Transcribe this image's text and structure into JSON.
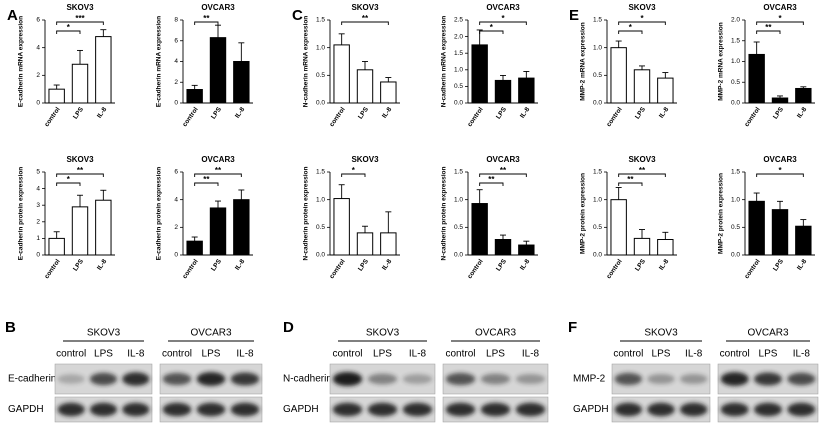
{
  "chart_panels": [
    "A",
    "C",
    "E"
  ],
  "chart_data": [
    {
      "type": "bar",
      "title": "SKOV3",
      "ylabel": "E-cadherin mRNA expression",
      "categories": [
        "control",
        "LPS",
        "IL-8"
      ],
      "values": [
        1.0,
        2.8,
        4.8
      ],
      "errors": [
        0.3,
        1.0,
        0.5
      ],
      "color": "#ffffff",
      "ylim": [
        0,
        6
      ],
      "yticks": [
        0,
        2,
        4,
        6
      ],
      "brackets": [
        {
          "from": 0,
          "to": 1,
          "label": "*"
        },
        {
          "from": 0,
          "to": 2,
          "label": "***"
        }
      ]
    },
    {
      "type": "bar",
      "title": "OVCAR3",
      "ylabel": "E-cadherin mRNA expression",
      "categories": [
        "control",
        "LPS",
        "IL-8"
      ],
      "values": [
        1.3,
        6.3,
        4.0
      ],
      "errors": [
        0.4,
        1.2,
        1.8
      ],
      "color": "#000000",
      "ylim": [
        0,
        8
      ],
      "yticks": [
        0,
        2,
        4,
        6,
        8
      ],
      "brackets": [
        {
          "from": 0,
          "to": 1,
          "label": "**"
        }
      ]
    },
    {
      "type": "bar",
      "title": "SKOV3",
      "ylabel": "E-cadherin protein expression",
      "categories": [
        "control",
        "LPS",
        "IL-8"
      ],
      "values": [
        1.0,
        2.9,
        3.3
      ],
      "errors": [
        0.4,
        0.7,
        0.6
      ],
      "color": "#ffffff",
      "ylim": [
        0,
        5
      ],
      "yticks": [
        0,
        1,
        2,
        3,
        4,
        5
      ],
      "brackets": [
        {
          "from": 0,
          "to": 1,
          "label": "*"
        },
        {
          "from": 0,
          "to": 2,
          "label": "**"
        }
      ]
    },
    {
      "type": "bar",
      "title": "OVCAR3",
      "ylabel": "E-cadherin protein expression",
      "categories": [
        "control",
        "LPS",
        "IL-8"
      ],
      "values": [
        1.0,
        3.4,
        4.0
      ],
      "errors": [
        0.3,
        0.5,
        0.7
      ],
      "color": "#000000",
      "ylim": [
        0,
        6
      ],
      "yticks": [
        0,
        2,
        4,
        6
      ],
      "brackets": [
        {
          "from": 0,
          "to": 1,
          "label": "**"
        },
        {
          "from": 0,
          "to": 2,
          "label": "**"
        }
      ]
    },
    {
      "type": "bar",
      "title": "SKOV3",
      "ylabel": "N-cadherin mRNA expression",
      "categories": [
        "control",
        "LPS",
        "IL-8"
      ],
      "values": [
        1.05,
        0.6,
        0.38
      ],
      "errors": [
        0.2,
        0.15,
        0.08
      ],
      "color": "#ffffff",
      "ylim": [
        0,
        1.5
      ],
      "yticks": [
        {
          "value": 0,
          "label": "0.0"
        },
        0.5,
        {
          "value": 1,
          "label": "1.0"
        },
        1.5
      ],
      "brackets": [
        {
          "from": 0,
          "to": 2,
          "label": "**"
        }
      ]
    },
    {
      "type": "bar",
      "title": "OVCAR3",
      "ylabel": "N-cadherin mRNA expression",
      "categories": [
        "control",
        "LPS",
        "IL-8"
      ],
      "values": [
        1.75,
        0.68,
        0.75
      ],
      "errors": [
        0.45,
        0.15,
        0.2
      ],
      "color": "#000000",
      "ylim": [
        0,
        2.5
      ],
      "yticks": [
        {
          "value": 0,
          "label": "0.0"
        },
        0.5,
        {
          "value": 1,
          "label": "1.0"
        },
        1.5,
        {
          "value": 2,
          "label": "2.0"
        },
        2.5
      ],
      "brackets": [
        {
          "from": 0,
          "to": 1,
          "label": "*"
        },
        {
          "from": 0,
          "to": 2,
          "label": "*"
        }
      ]
    },
    {
      "type": "bar",
      "title": "SKOV3",
      "ylabel": "N-cadherin protein expression",
      "categories": [
        "control",
        "LPS",
        "IL-8"
      ],
      "values": [
        1.02,
        0.4,
        0.4
      ],
      "errors": [
        0.25,
        0.12,
        0.38
      ],
      "color": "#ffffff",
      "ylim": [
        0,
        1.5
      ],
      "yticks": [
        {
          "value": 0,
          "label": "0.0"
        },
        0.5,
        {
          "value": 1,
          "label": "1.0"
        },
        1.5
      ],
      "brackets": [
        {
          "from": 0,
          "to": 1,
          "label": "*"
        }
      ]
    },
    {
      "type": "bar",
      "title": "OVCAR3",
      "ylabel": "N-cadherin protein expression",
      "categories": [
        "control",
        "LPS",
        "IL-8"
      ],
      "values": [
        0.93,
        0.28,
        0.18
      ],
      "errors": [
        0.25,
        0.08,
        0.07
      ],
      "color": "#000000",
      "ylim": [
        0,
        1.5
      ],
      "yticks": [
        {
          "value": 0,
          "label": "0.0"
        },
        0.5,
        {
          "value": 1,
          "label": "1.0"
        },
        1.5
      ],
      "brackets": [
        {
          "from": 0,
          "to": 1,
          "label": "**"
        },
        {
          "from": 0,
          "to": 2,
          "label": "**"
        }
      ]
    },
    {
      "type": "bar",
      "title": "SKOV3",
      "ylabel": "MMP-2 mRNA expression",
      "categories": [
        "control",
        "LPS",
        "IL-8"
      ],
      "values": [
        1.0,
        0.6,
        0.45
      ],
      "errors": [
        0.12,
        0.07,
        0.1
      ],
      "color": "#ffffff",
      "ylim": [
        0,
        1.5
      ],
      "yticks": [
        {
          "value": 0,
          "label": "0.0"
        },
        0.5,
        {
          "value": 1,
          "label": "1.0"
        },
        1.5
      ],
      "brackets": [
        {
          "from": 0,
          "to": 1,
          "label": "*"
        },
        {
          "from": 0,
          "to": 2,
          "label": "*"
        }
      ]
    },
    {
      "type": "bar",
      "title": "OVCAR3",
      "ylabel": "MMP-2 mRNA expression",
      "categories": [
        "control",
        "LPS",
        "IL-8"
      ],
      "values": [
        1.17,
        0.12,
        0.35
      ],
      "errors": [
        0.3,
        0.05,
        0.04
      ],
      "color": "#000000",
      "ylim": [
        0,
        2
      ],
      "yticks": [
        {
          "value": 0,
          "label": "0.0"
        },
        0.5,
        {
          "value": 1,
          "label": "1.0"
        },
        1.5,
        {
          "value": 2,
          "label": "2.0"
        }
      ],
      "brackets": [
        {
          "from": 0,
          "to": 1,
          "label": "**"
        },
        {
          "from": 0,
          "to": 2,
          "label": "*"
        }
      ]
    },
    {
      "type": "bar",
      "title": "SKOV3",
      "ylabel": "MMP-2 protein expression",
      "categories": [
        "control",
        "LPS",
        "IL-8"
      ],
      "values": [
        1.0,
        0.3,
        0.28
      ],
      "errors": [
        0.22,
        0.16,
        0.13
      ],
      "color": "#ffffff",
      "ylim": [
        0,
        1.5
      ],
      "yticks": [
        {
          "value": 0,
          "label": "0.0"
        },
        0.5,
        {
          "value": 1,
          "label": "1.0"
        },
        1.5
      ],
      "brackets": [
        {
          "from": 0,
          "to": 1,
          "label": "**"
        },
        {
          "from": 0,
          "to": 2,
          "label": "**"
        }
      ]
    },
    {
      "type": "bar",
      "title": "OVCAR3",
      "ylabel": "MMP-2 protein expression",
      "categories": [
        "control",
        "LPS",
        "IL-8"
      ],
      "values": [
        0.97,
        0.82,
        0.52
      ],
      "errors": [
        0.15,
        0.15,
        0.12
      ],
      "color": "#000000",
      "ylim": [
        0,
        1.5
      ],
      "yticks": [
        {
          "value": 0,
          "label": "0.0"
        },
        0.5,
        {
          "value": 1,
          "label": "1.0"
        },
        1.5
      ],
      "brackets": [
        {
          "from": 0,
          "to": 2,
          "label": "*"
        }
      ]
    }
  ],
  "blots": [
    {
      "letter": "B",
      "groups": [
        "SKOV3",
        "OVCAR3"
      ],
      "lanes": [
        "control",
        "LPS",
        "IL-8",
        "control",
        "LPS",
        "IL-8"
      ],
      "rows": [
        "E-cadherin",
        "GAPDH"
      ]
    },
    {
      "letter": "D",
      "groups": [
        "SKOV3",
        "OVCAR3"
      ],
      "lanes": [
        "control",
        "LPS",
        "IL-8",
        "control",
        "LPS",
        "IL-8"
      ],
      "rows": [
        "N-cadherin",
        "GAPDH"
      ]
    },
    {
      "letter": "F",
      "groups": [
        "SKOV3",
        "OVCAR3"
      ],
      "lanes": [
        "control",
        "LPS",
        "IL-8",
        "control",
        "LPS",
        "IL-8"
      ],
      "rows": [
        "MMP-2",
        "GAPDH"
      ]
    }
  ]
}
